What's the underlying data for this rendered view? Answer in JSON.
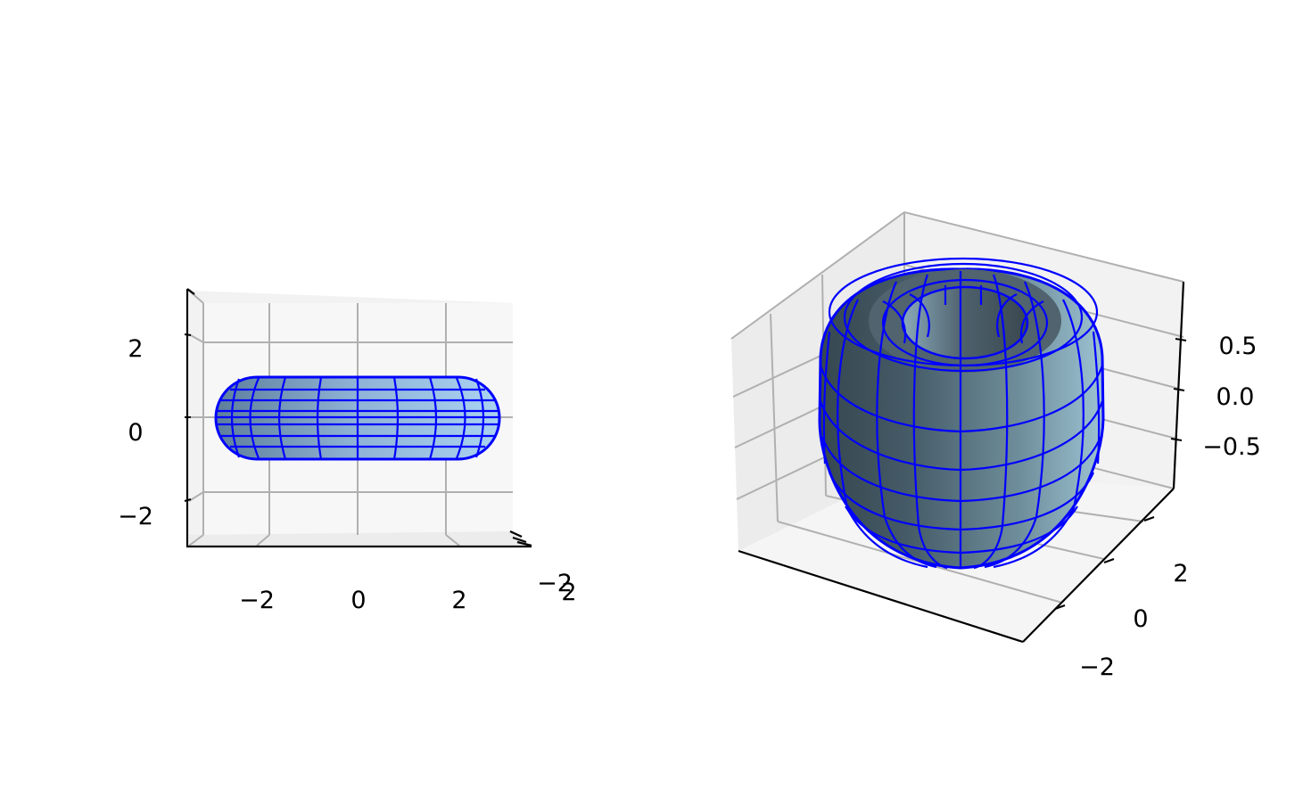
{
  "chart_data": [
    {
      "type": "surface3d",
      "shape": "torus",
      "view": "side (elevation 0)",
      "xticks": [
        "−2",
        "0",
        "2"
      ],
      "zticks": [
        "2",
        "0",
        "−2"
      ],
      "yticks_overlapping": [
        "−2",
        "2"
      ],
      "xlim": [
        -3.3,
        3.3
      ],
      "zlim": [
        -3.3,
        3.3
      ],
      "grid": true,
      "surface_color": "#87b4dc",
      "edge_color": "#0000ff"
    },
    {
      "type": "surface3d",
      "shape": "torus",
      "view": "default perspective",
      "zticks": [
        "0.5",
        "0.0",
        "−0.5"
      ],
      "yticks": [
        "2",
        "0",
        "−2"
      ],
      "zlim": [
        -1,
        1
      ],
      "ylim": [
        -3,
        3
      ],
      "grid": true,
      "surface_color": "#87b4dc",
      "edge_color": "#0000ff"
    }
  ]
}
